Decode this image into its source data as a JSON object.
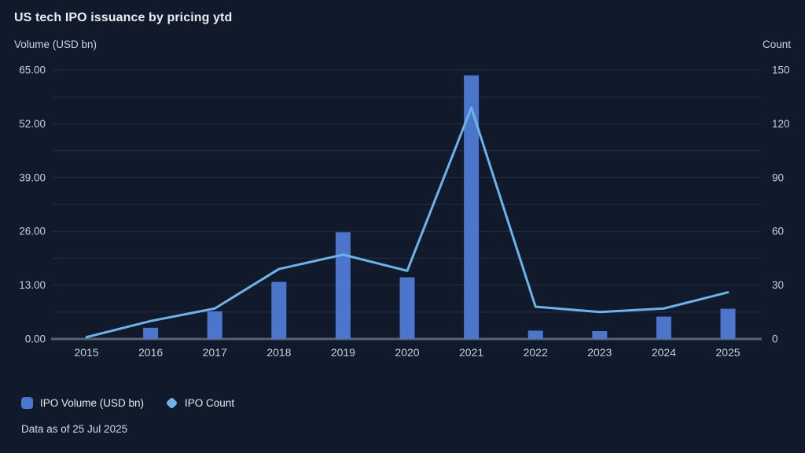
{
  "header": {
    "title": "US tech IPO issuance by pricing ytd",
    "left_axis_label": "Volume (USD bn)",
    "right_axis_label": "Count"
  },
  "legend": {
    "items": [
      {
        "label": "IPO Volume (USD bn)",
        "marker": "square-icon",
        "color": "#4b76cc"
      },
      {
        "label": "IPO Count",
        "marker": "diamond-icon",
        "color": "#6db3e9"
      }
    ]
  },
  "footnote": "Data as of 25 Jul 2025",
  "colors": {
    "background": "#101a2b",
    "bar": "#4b76cc",
    "line": "#6db3e9",
    "gridline": "#232f45",
    "axis_line": "#5a6370",
    "tick_text": "#c6cedb",
    "title_text": "#e9edf3"
  },
  "chart_data": {
    "type": "bar+line combo, dual axis",
    "title": "US tech IPO issuance by pricing ytd",
    "categories": [
      "2015",
      "2016",
      "2017",
      "2018",
      "2019",
      "2020",
      "2021",
      "2022",
      "2023",
      "2024",
      "2025"
    ],
    "series": [
      {
        "name": "IPO Volume (USD bn)",
        "type": "bar",
        "axis": "left",
        "values": [
          0,
          2.7,
          6.7,
          13.8,
          25.8,
          14.9,
          63.7,
          2.0,
          1.9,
          5.4,
          7.3
        ]
      },
      {
        "name": "IPO Count",
        "type": "line",
        "axis": "right",
        "values": [
          1,
          10,
          17,
          39,
          47,
          38,
          129,
          18,
          15,
          17,
          26
        ]
      }
    ],
    "left_axis": {
      "label": "Volume (USD bn)",
      "min": 0,
      "max": 65,
      "gridline_step": 6.5,
      "tick_values": [
        0,
        13,
        26,
        39,
        52,
        65
      ],
      "tick_labels": [
        "0.00",
        "13.00",
        "26.00",
        "39.00",
        "52.00",
        "65.00"
      ]
    },
    "right_axis": {
      "label": "Count",
      "min": 0,
      "max": 150,
      "tick_values": [
        0,
        30,
        60,
        90,
        120,
        150
      ],
      "tick_labels": [
        "0",
        "30",
        "60",
        "90",
        "120",
        "150"
      ]
    },
    "grid": true,
    "legend_position": "bottom-left"
  }
}
